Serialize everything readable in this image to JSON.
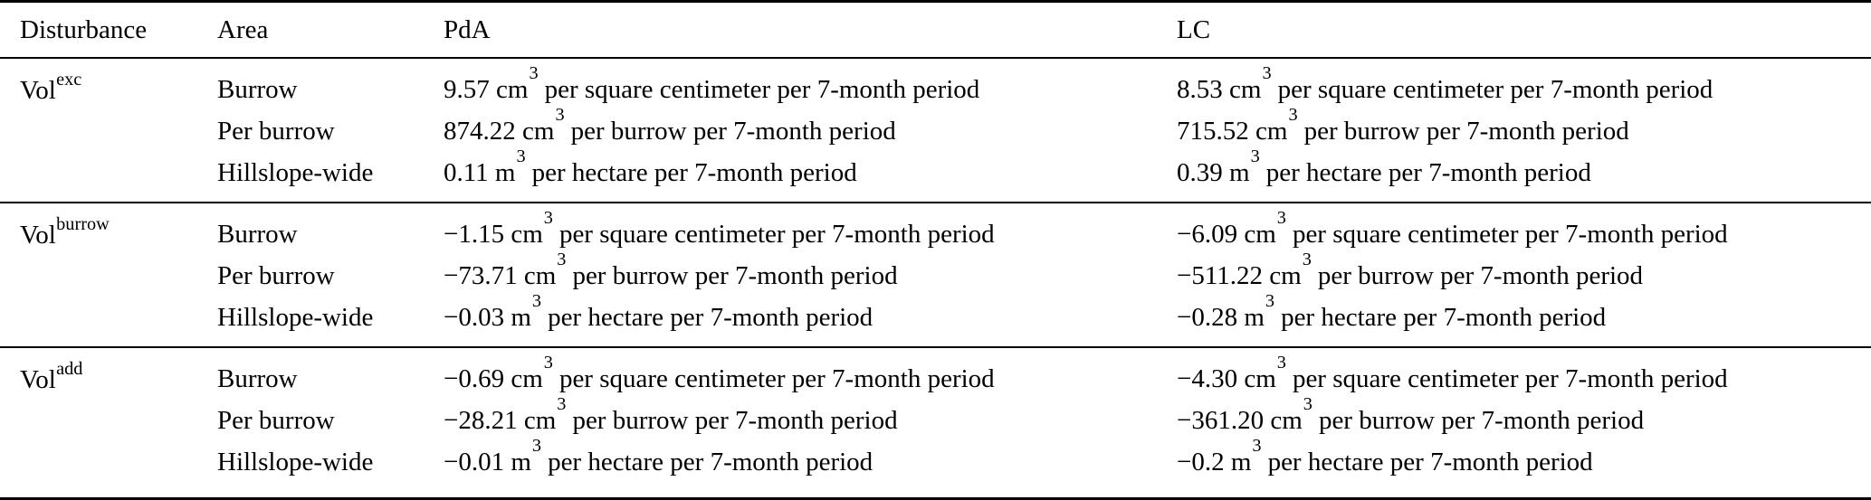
{
  "table": {
    "columns": {
      "disturbance": "Disturbance",
      "area": "Area",
      "pda": "PdA",
      "lc": "LC"
    },
    "groups": [
      {
        "disturbance": {
          "base": "Vol",
          "sub": "exc"
        },
        "rows": [
          {
            "area": "Burrow",
            "pda": {
              "pre": "9.57 cm",
              "exp": "3",
              "post": "per square centimeter per 7-month period"
            },
            "lc": {
              "pre": "8.53 cm",
              "exp": "3",
              "post": "per square centimeter per 7-month period"
            }
          },
          {
            "area": "Per burrow",
            "pda": {
              "pre": "874.22 cm",
              "exp": "3",
              "post": "per burrow per 7-month period"
            },
            "lc": {
              "pre": "715.52 cm",
              "exp": "3",
              "post": "per burrow per 7-month period"
            }
          },
          {
            "area": "Hillslope-wide",
            "pda": {
              "pre": "0.11 m",
              "exp": "3",
              "post": "per hectare per 7-month period"
            },
            "lc": {
              "pre": "0.39 m",
              "exp": "3",
              "post": "per hectare per 7-month period"
            }
          }
        ]
      },
      {
        "disturbance": {
          "base": "Vol",
          "sub": "burrow"
        },
        "rows": [
          {
            "area": "Burrow",
            "pda": {
              "pre": "−1.15 cm",
              "exp": "3",
              "post": "per square centimeter per 7-month period"
            },
            "lc": {
              "pre": "−6.09 cm",
              "exp": "3",
              "post": "per square centimeter per 7-month period"
            }
          },
          {
            "area": "Per burrow",
            "pda": {
              "pre": "−73.71 cm",
              "exp": "3",
              "post": "per burrow per 7-month period"
            },
            "lc": {
              "pre": "−511.22 cm",
              "exp": "3",
              "post": "per burrow per 7-month period"
            }
          },
          {
            "area": "Hillslope-wide",
            "pda": {
              "pre": "−0.03 m",
              "exp": "3",
              "post": "per hectare per 7-month period"
            },
            "lc": {
              "pre": "−0.28 m",
              "exp": "3",
              "post": "per hectare per 7-month period"
            }
          }
        ]
      },
      {
        "disturbance": {
          "base": "Vol",
          "sub": "add"
        },
        "rows": [
          {
            "area": "Burrow",
            "pda": {
              "pre": "−0.69 cm",
              "exp": "3",
              "post": "per square centimeter per 7-month period"
            },
            "lc": {
              "pre": "−4.30 cm",
              "exp": "3",
              "post": "per square centimeter per 7-month period"
            }
          },
          {
            "area": "Per burrow",
            "pda": {
              "pre": "−28.21 cm",
              "exp": "3",
              "post": "per burrow per 7-month period"
            },
            "lc": {
              "pre": "−361.20 cm",
              "exp": "3",
              "post": "per burrow per 7-month period"
            }
          },
          {
            "area": "Hillslope-wide",
            "pda": {
              "pre": "−0.01 m",
              "exp": "3",
              "post": "per hectare per 7-month period"
            },
            "lc": {
              "pre": "−0.2 m",
              "exp": "3",
              "post": "per hectare per 7-month period"
            }
          }
        ]
      }
    ]
  }
}
